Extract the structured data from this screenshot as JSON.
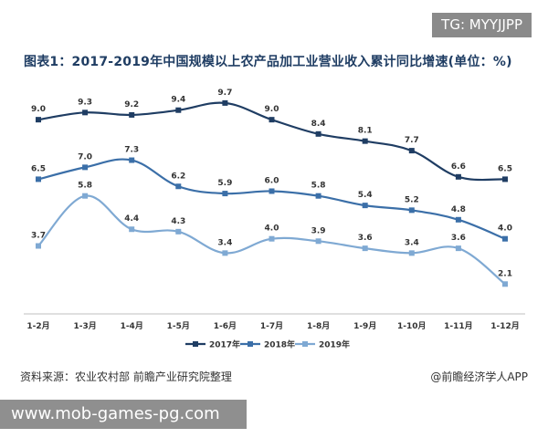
{
  "watermark_top": "TG: MYYJJPP",
  "footer": {
    "source": "资料来源：农业农村部 前瞻产业研究院整理",
    "brand": "@前瞻经济学人APP"
  },
  "watermark_bottom": "www.mob-games-pg.com",
  "chart_data": {
    "type": "line",
    "title": "图表1：2017-2019年中国规模以上农产品加工业营业收入累计同比增速(单位：%)",
    "xlabel": "",
    "ylabel": "",
    "categories": [
      "1-2月",
      "1-3月",
      "1-4月",
      "1-5月",
      "1-6月",
      "1-7月",
      "1-8月",
      "1-9月",
      "1-10月",
      "1-11月",
      "1-12月"
    ],
    "ylim": [
      1,
      10.5
    ],
    "grid": false,
    "legend": "bottom",
    "series": [
      {
        "name": "2017年",
        "color": "#1f3d63",
        "values": [
          9.0,
          9.3,
          9.2,
          9.4,
          9.7,
          9.0,
          8.4,
          8.1,
          7.7,
          6.6,
          6.5
        ]
      },
      {
        "name": "2018年",
        "color": "#3b6fa8",
        "values": [
          6.5,
          7.0,
          7.3,
          6.2,
          5.9,
          6.0,
          5.8,
          5.4,
          5.2,
          4.8,
          4.0
        ]
      },
      {
        "name": "2019年",
        "color": "#7fa9d3",
        "values": [
          3.7,
          5.8,
          4.4,
          4.3,
          3.4,
          4.0,
          3.9,
          3.6,
          3.4,
          3.6,
          2.1
        ]
      }
    ]
  }
}
